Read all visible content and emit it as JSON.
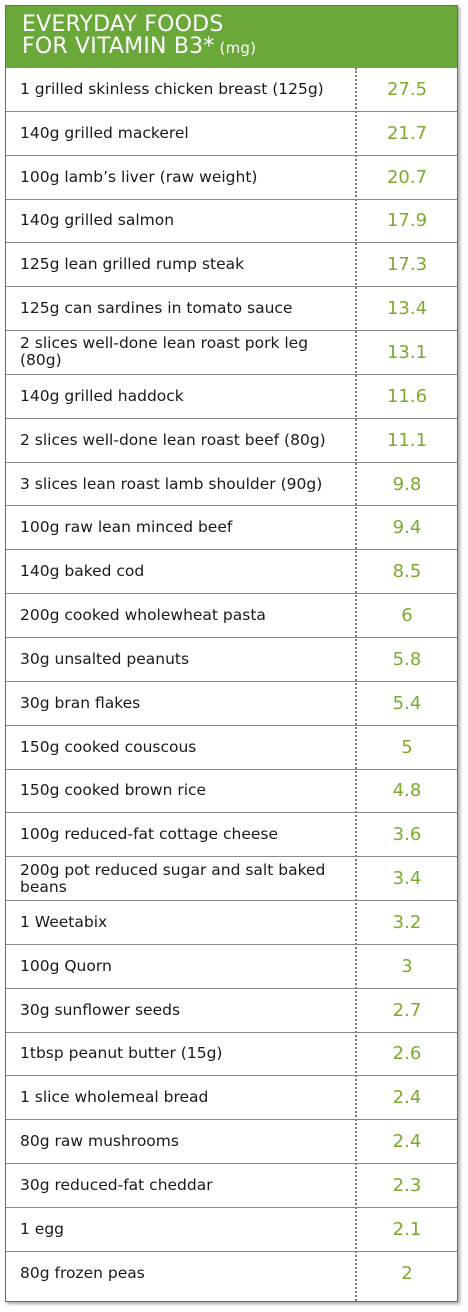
{
  "header": {
    "line1": "EVERYDAY FOODS",
    "line2": "FOR VITAMIN B3*",
    "unit": " (mg)"
  },
  "colors": {
    "header_bg": "#6aa83a",
    "value_text": "#7aab2e",
    "food_text": "#1a1a1a"
  },
  "foods": [
    {
      "food": "1 grilled skinless chicken breast (125g)",
      "value": "27.5"
    },
    {
      "food": "140g grilled mackerel",
      "value": "21.7"
    },
    {
      "food": "100g lamb’s liver (raw weight)",
      "value": "20.7"
    },
    {
      "food": "140g grilled salmon",
      "value": "17.9"
    },
    {
      "food": "125g lean grilled rump steak",
      "value": "17.3"
    },
    {
      "food": "125g can sardines in tomato sauce",
      "value": "13.4"
    },
    {
      "food": "2 slices well-done lean roast pork leg (80g)",
      "value": "13.1"
    },
    {
      "food": "140g grilled haddock",
      "value": "11.6"
    },
    {
      "food": "2 slices well-done lean roast beef (80g)",
      "value": "11.1"
    },
    {
      "food": "3 slices lean roast lamb shoulder (90g)",
      "value": "9.8"
    },
    {
      "food": "100g raw lean minced beef",
      "value": "9.4"
    },
    {
      "food": "140g baked cod",
      "value": "8.5"
    },
    {
      "food": "200g cooked wholewheat pasta",
      "value": "6"
    },
    {
      "food": "30g unsalted peanuts",
      "value": "5.8"
    },
    {
      "food": "30g bran flakes",
      "value": "5.4"
    },
    {
      "food": "150g cooked couscous",
      "value": "5"
    },
    {
      "food": "150g cooked brown rice",
      "value": "4.8"
    },
    {
      "food": "100g reduced-fat cottage cheese",
      "value": "3.6"
    },
    {
      "food": "200g pot reduced sugar and salt baked beans",
      "value": "3.4"
    },
    {
      "food": "1 Weetabix",
      "value": "3.2"
    },
    {
      "food": "100g Quorn",
      "value": "3"
    },
    {
      "food": "30g sunflower seeds",
      "value": "2.7"
    },
    {
      "food": "1tbsp peanut butter (15g)",
      "value": "2.6"
    },
    {
      "food": "1 slice wholemeal bread",
      "value": "2.4"
    },
    {
      "food": "80g raw mushrooms",
      "value": "2.4"
    },
    {
      "food": "30g reduced-fat cheddar",
      "value": "2.3"
    },
    {
      "food": "1 egg",
      "value": "2.1"
    },
    {
      "food": "80g frozen peas",
      "value": "2"
    }
  ]
}
